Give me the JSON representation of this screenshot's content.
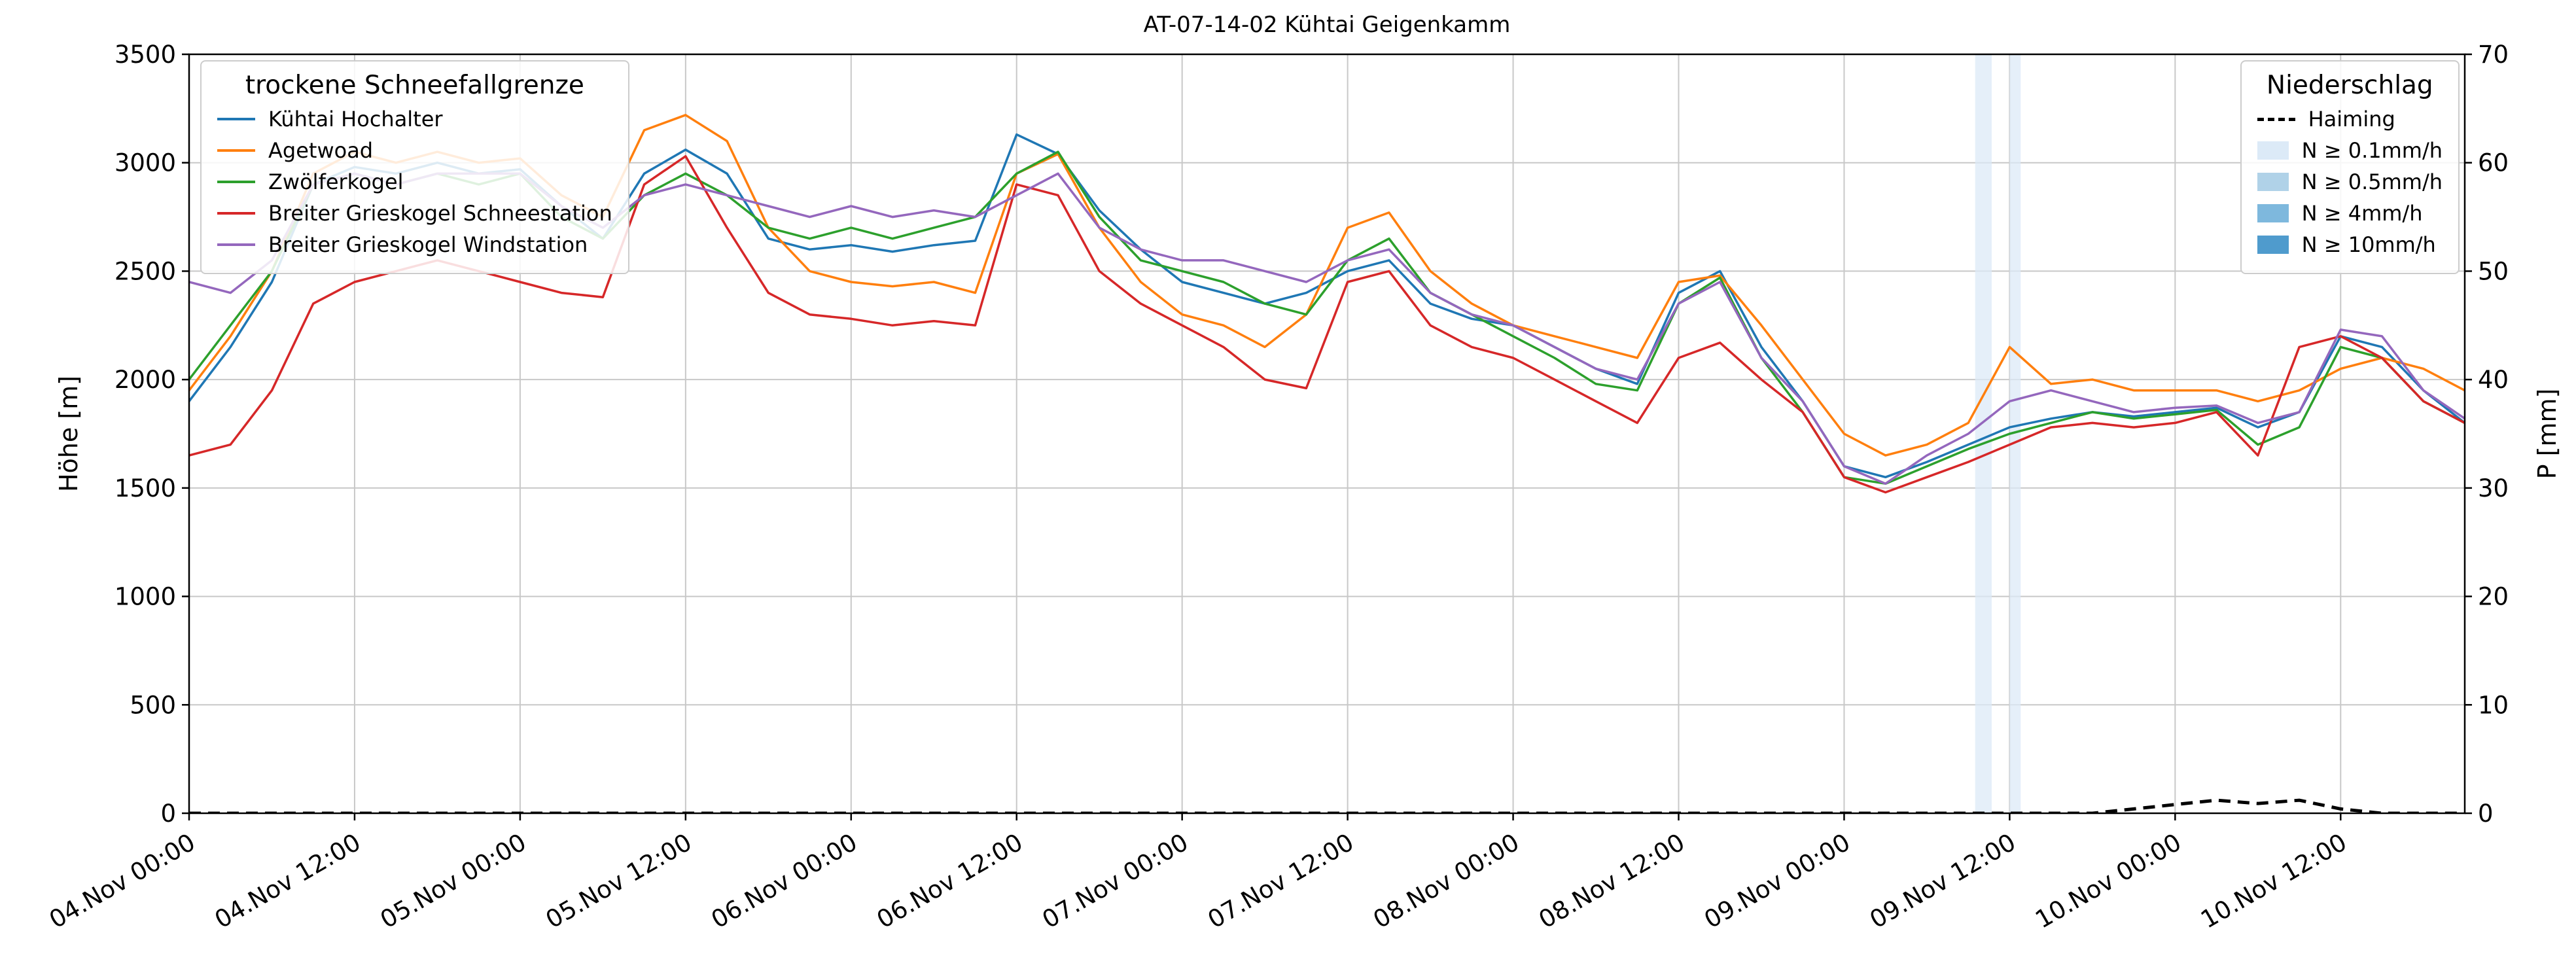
{
  "chart_data": {
    "type": "line",
    "title": "AT-07-14-02 Kühtai Geigenkamm",
    "ylabel_left": "Höhe [m]",
    "ylabel_right": "P [mm]",
    "ylim_left": [
      0,
      3500
    ],
    "ylim_right": [
      0,
      70
    ],
    "xlim_hours": [
      0,
      165
    ],
    "grid": true,
    "y_left_ticks": [
      0,
      500,
      1000,
      1500,
      2000,
      2500,
      3000,
      3500
    ],
    "y_right_ticks": [
      0,
      10,
      20,
      30,
      40,
      50,
      60,
      70
    ],
    "x_tick_hours": [
      0,
      12,
      24,
      36,
      48,
      60,
      72,
      84,
      96,
      108,
      120,
      132,
      144,
      156
    ],
    "x_tick_labels": [
      "04.Nov 00:00",
      "04.Nov 12:00",
      "05.Nov 00:00",
      "05.Nov 12:00",
      "06.Nov 00:00",
      "06.Nov 12:00",
      "07.Nov 00:00",
      "07.Nov 12:00",
      "08.Nov 00:00",
      "08.Nov 12:00",
      "09.Nov 00:00",
      "09.Nov 12:00",
      "10.Nov 00:00",
      "10.Nov 12:00"
    ],
    "x_hours": [
      0,
      3,
      6,
      9,
      12,
      15,
      18,
      21,
      24,
      27,
      30,
      33,
      36,
      39,
      42,
      45,
      48,
      51,
      54,
      57,
      60,
      63,
      66,
      69,
      72,
      75,
      78,
      81,
      84,
      87,
      90,
      93,
      96,
      99,
      102,
      105,
      108,
      111,
      114,
      117,
      120,
      123,
      126,
      129,
      132,
      135,
      138,
      141,
      144,
      147,
      150,
      153,
      156,
      159,
      162,
      165
    ],
    "series": [
      {
        "name": "Kühtai Hochalter",
        "color": "#1f77b4",
        "values": [
          1900,
          2150,
          2450,
          2900,
          2980,
          2950,
          3000,
          2950,
          2970,
          2800,
          2650,
          2950,
          3060,
          2950,
          2650,
          2600,
          2620,
          2590,
          2620,
          2640,
          3130,
          3040,
          2780,
          2600,
          2450,
          2400,
          2350,
          2400,
          2500,
          2550,
          2350,
          2280,
          2250,
          2150,
          2050,
          1980,
          2400,
          2500,
          2150,
          1900,
          1600,
          1550,
          1620,
          1700,
          1780,
          1820,
          1850,
          1830,
          1850,
          1870,
          1780,
          1850,
          2200,
          2150,
          1950,
          1800
        ]
      },
      {
        "name": "Agetwoad",
        "color": "#ff7f0e",
        "values": [
          1950,
          2200,
          2500,
          2950,
          3050,
          3000,
          3050,
          3000,
          3020,
          2850,
          2750,
          3150,
          3220,
          3100,
          2700,
          2500,
          2450,
          2430,
          2450,
          2400,
          2950,
          3040,
          2700,
          2450,
          2300,
          2250,
          2150,
          2300,
          2700,
          2770,
          2500,
          2350,
          2250,
          2200,
          2150,
          2100,
          2450,
          2480,
          2250,
          2000,
          1750,
          1650,
          1700,
          1800,
          2150,
          1980,
          2000,
          1950,
          1950,
          1950,
          1900,
          1950,
          2050,
          2100,
          2050,
          1950
        ]
      },
      {
        "name": "Zwölferkogel",
        "color": "#2ca02c",
        "values": [
          2000,
          2250,
          2500,
          2900,
          2950,
          2900,
          2950,
          2900,
          2950,
          2750,
          2650,
          2850,
          2950,
          2850,
          2700,
          2650,
          2700,
          2650,
          2700,
          2750,
          2950,
          3050,
          2750,
          2550,
          2500,
          2450,
          2350,
          2300,
          2550,
          2650,
          2400,
          2300,
          2200,
          2100,
          1980,
          1950,
          2350,
          2470,
          2100,
          1850,
          1550,
          1520,
          1600,
          1680,
          1750,
          1800,
          1850,
          1820,
          1840,
          1860,
          1700,
          1780,
          2150,
          2100,
          1900,
          1800
        ]
      },
      {
        "name": "Breiter Grieskogel Schneestation",
        "color": "#d62728",
        "values": [
          1650,
          1700,
          1950,
          2350,
          2450,
          2500,
          2550,
          2500,
          2450,
          2400,
          2380,
          2900,
          3030,
          2700,
          2400,
          2300,
          2280,
          2250,
          2270,
          2250,
          2900,
          2850,
          2500,
          2350,
          2250,
          2150,
          2000,
          1960,
          2450,
          2500,
          2250,
          2150,
          2100,
          2000,
          1900,
          1800,
          2100,
          2170,
          2000,
          1850,
          1550,
          1480,
          1550,
          1620,
          1700,
          1780,
          1800,
          1780,
          1800,
          1850,
          1650,
          2150,
          2200,
          2100,
          1900,
          1800
        ]
      },
      {
        "name": "Breiter Grieskogel Windstation",
        "color": "#9467bd",
        "values": [
          2450,
          2400,
          2550,
          2900,
          2950,
          2900,
          2950,
          2950,
          2950,
          2800,
          2700,
          2850,
          2900,
          2850,
          2800,
          2750,
          2800,
          2750,
          2780,
          2750,
          2850,
          2950,
          2700,
          2600,
          2550,
          2550,
          2500,
          2450,
          2550,
          2600,
          2400,
          2300,
          2250,
          2150,
          2050,
          2000,
          2350,
          2450,
          2100,
          1900,
          1600,
          1520,
          1650,
          1750,
          1900,
          1950,
          1900,
          1850,
          1870,
          1880,
          1800,
          1850,
          2230,
          2200,
          1950,
          1820
        ]
      }
    ],
    "precip_line": {
      "name": "Haiming",
      "color": "#000000",
      "dash": true,
      "axis": "right",
      "values": [
        0,
        0,
        0,
        0,
        0,
        0,
        0,
        0,
        0,
        0,
        0,
        0,
        0,
        0,
        0,
        0,
        0,
        0,
        0,
        0,
        0,
        0,
        0,
        0,
        0,
        0,
        0,
        0,
        0,
        0,
        0,
        0,
        0,
        0,
        0,
        0,
        0,
        0,
        0,
        0,
        0,
        0,
        0,
        0,
        0,
        0,
        0,
        0.4,
        0.8,
        1.2,
        0.9,
        1.2,
        0.4,
        0,
        0,
        0
      ]
    },
    "precip_bands": [
      {
        "start_hour": 129.5,
        "end_hour": 130.7,
        "label": "N ≥ 0.1mm/h",
        "color": "#dceaf7"
      },
      {
        "start_hour": 132.0,
        "end_hour": 132.8,
        "label": "N ≥ 0.1mm/h",
        "color": "#dceaf7"
      }
    ],
    "legend_left": {
      "title": "trockene Schneefallgrenze",
      "position": "upper left"
    },
    "legend_right": {
      "title": "Niederschlag",
      "position": "upper right",
      "line_entry": "Haiming",
      "band_entries": [
        {
          "label": "N ≥ 0.1mm/h",
          "color": "#dceaf7"
        },
        {
          "label": "N ≥ 0.5mm/h",
          "color": "#b0d2e8"
        },
        {
          "label": "N ≥ 4mm/h",
          "color": "#7eb8dd"
        },
        {
          "label": "N ≥ 10mm/h",
          "color": "#4f9bcd"
        }
      ]
    }
  }
}
